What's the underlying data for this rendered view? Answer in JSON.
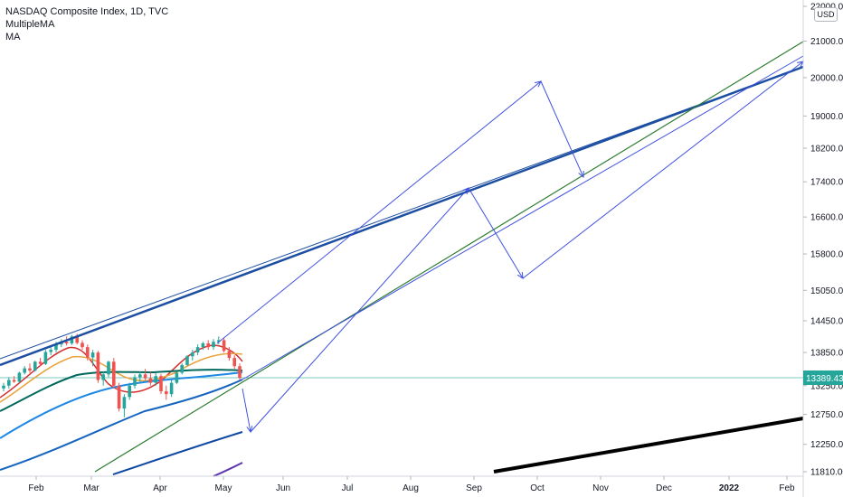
{
  "legend": {
    "title": "NASDAQ Composite Index, 1D, TVC",
    "indicator1": "MultipleMA",
    "indicator2": "MA"
  },
  "currency": "USD",
  "last_price": "13389.43",
  "colors": {
    "axis_line": "#d1d4dc",
    "price_line": "#26a69a",
    "badge": "#26a69a",
    "trend_blue": "#1c4ea1",
    "trend_green": "#2e7d32",
    "arrow": "#3f51e0",
    "black": "#000000",
    "up": "#26a69a",
    "down": "#ef5350"
  },
  "chart_data": {
    "type": "line",
    "title": "NASDAQ Composite Index, 1D, TVC",
    "y_scale": "log",
    "ylim": [
      11700,
      22100
    ],
    "x_ticks": [
      "Feb",
      "Mar",
      "Apr",
      "May",
      "Jun",
      "Jul",
      "Aug",
      "Sep",
      "Oct",
      "Nov",
      "Dec",
      "2022",
      "Feb"
    ],
    "y_ticks": [
      22000,
      21000,
      20000,
      19000,
      18200,
      17400,
      16600,
      15800,
      15050,
      14450,
      13850,
      13250,
      12750,
      12250,
      11810
    ],
    "y_tick_labels": [
      "22000.00",
      "21000.00",
      "20000.00",
      "19000.00",
      "18200.00",
      "17400.00",
      "16600.00",
      "15800.00",
      "15050.00",
      "14450.00",
      "13850.00",
      "13250.00",
      "12750.00",
      "12250.00",
      "11810.00"
    ],
    "last_price": 13389.43,
    "candles_ohlc": [
      [
        13200,
        13300,
        13150,
        13250
      ],
      [
        13250,
        13400,
        13200,
        13350
      ],
      [
        13350,
        13420,
        13300,
        13320
      ],
      [
        13320,
        13500,
        13300,
        13480
      ],
      [
        13480,
        13600,
        13450,
        13560
      ],
      [
        13560,
        13650,
        13480,
        13520
      ],
      [
        13520,
        13700,
        13500,
        13680
      ],
      [
        13680,
        13750,
        13600,
        13640
      ],
      [
        13640,
        13900,
        13620,
        13860
      ],
      [
        13860,
        13950,
        13800,
        13900
      ],
      [
        13900,
        14050,
        13850,
        14000
      ],
      [
        14000,
        14100,
        13950,
        14050
      ],
      [
        14050,
        14150,
        13980,
        14020
      ],
      [
        14020,
        14180,
        13990,
        14150
      ],
      [
        14150,
        14200,
        14000,
        14030
      ],
      [
        14030,
        14080,
        13900,
        13950
      ],
      [
        13950,
        14000,
        13700,
        13760
      ],
      [
        13760,
        13900,
        13600,
        13850
      ],
      [
        13850,
        13880,
        13300,
        13350
      ],
      [
        13350,
        13500,
        13250,
        13450
      ],
      [
        13450,
        13700,
        13400,
        13680
      ],
      [
        13680,
        13750,
        13200,
        13250
      ],
      [
        13250,
        13300,
        12800,
        12850
      ],
      [
        12850,
        13100,
        12700,
        13050
      ],
      [
        13050,
        13300,
        13000,
        13250
      ],
      [
        13250,
        13450,
        13200,
        13400
      ],
      [
        13400,
        13500,
        13300,
        13450
      ],
      [
        13450,
        13550,
        13350,
        13380
      ],
      [
        13380,
        13500,
        13250,
        13300
      ],
      [
        13300,
        13480,
        13250,
        13420
      ],
      [
        13420,
        13460,
        13100,
        13150
      ],
      [
        13150,
        13250,
        13000,
        13100
      ],
      [
        13100,
        13350,
        13050,
        13300
      ],
      [
        13300,
        13500,
        13280,
        13480
      ],
      [
        13480,
        13650,
        13450,
        13620
      ],
      [
        13620,
        13800,
        13600,
        13780
      ],
      [
        13780,
        13900,
        13700,
        13850
      ],
      [
        13850,
        14000,
        13800,
        13950
      ],
      [
        13950,
        14050,
        13900,
        14020
      ],
      [
        14020,
        14080,
        13900,
        13950
      ],
      [
        13950,
        14100,
        13900,
        14050
      ],
      [
        14050,
        14150,
        14000,
        14080
      ],
      [
        14080,
        14120,
        13850,
        13880
      ],
      [
        13880,
        13950,
        13700,
        13750
      ],
      [
        13750,
        13800,
        13550,
        13600
      ],
      [
        13600,
        13650,
        13350,
        13389
      ]
    ]
  }
}
